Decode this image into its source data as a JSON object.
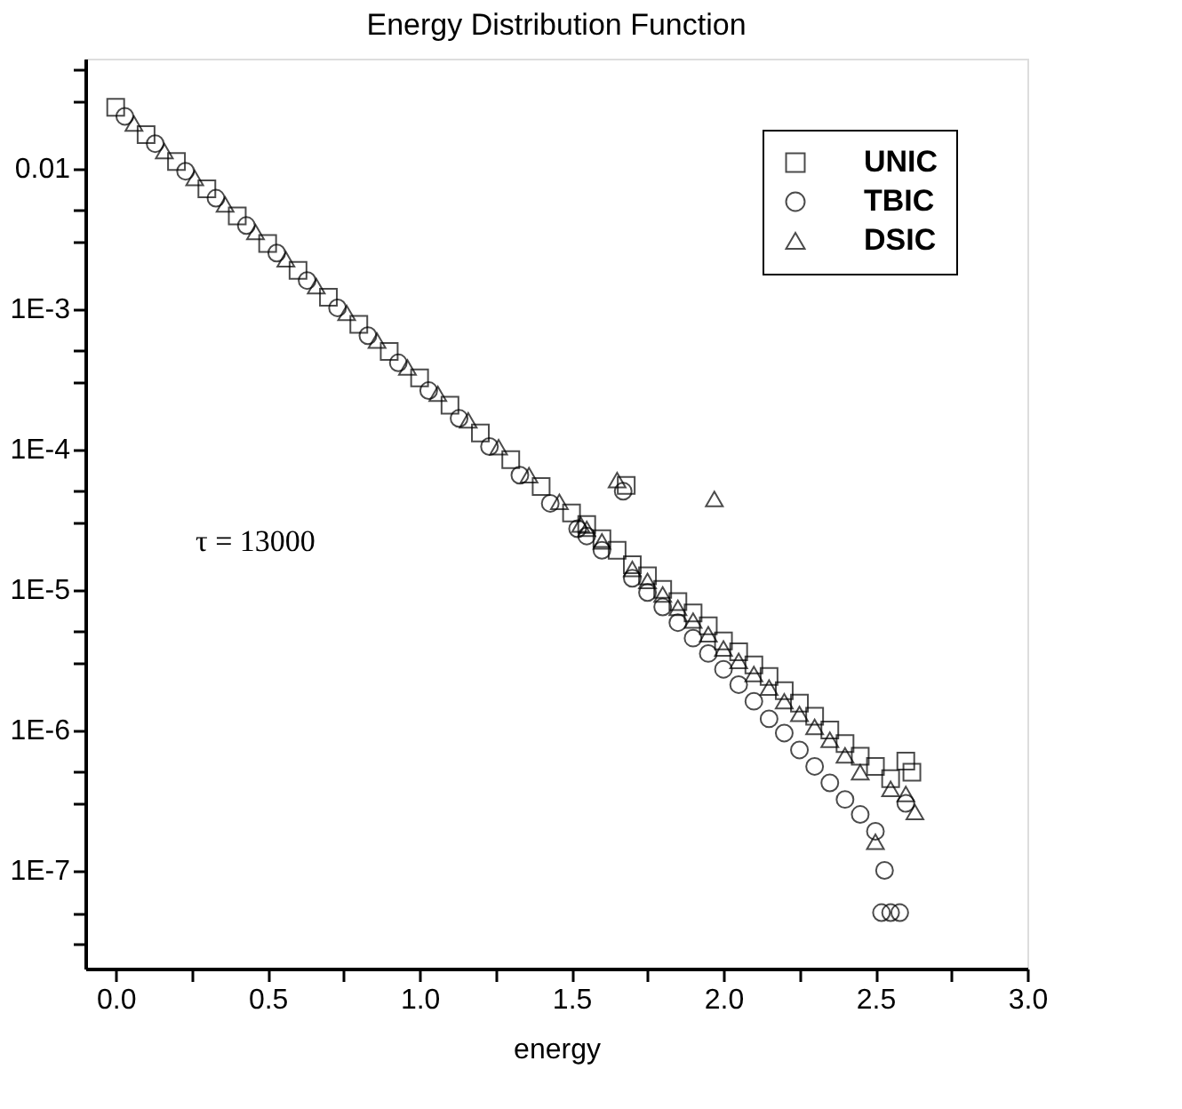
{
  "chart_data": {
    "type": "scatter",
    "title": "Energy Distribution Function",
    "xlabel": "energy",
    "annotations": [
      "τ = 13000"
    ],
    "xlim": [
      -0.1,
      3.0
    ],
    "xticks": [
      {
        "value": 0,
        "label": "0.0"
      },
      {
        "value": 0.25,
        "label": null
      },
      {
        "value": 0.5,
        "label": "0.5"
      },
      {
        "value": 0.75,
        "label": null
      },
      {
        "value": 1.0,
        "label": "1.0"
      },
      {
        "value": 1.25,
        "label": null
      },
      {
        "value": 1.5,
        "label": "1.5"
      },
      {
        "value": 1.75,
        "label": null
      },
      {
        "value": 2.0,
        "label": "2.0"
      },
      {
        "value": 2.25,
        "label": null
      },
      {
        "value": 2.5,
        "label": "2.5"
      },
      {
        "value": 2.75,
        "label": null
      },
      {
        "value": 3.0,
        "label": "3.0"
      }
    ],
    "ylim": [
      2e-08,
      0.06
    ],
    "log": "y",
    "yticks": [
      {
        "value": 3e-08,
        "label": null
      },
      {
        "value": 5e-08,
        "label": null
      },
      {
        "value": 1e-07,
        "label": "1E-7"
      },
      {
        "value": 3e-07,
        "label": null
      },
      {
        "value": 5e-07,
        "label": null
      },
      {
        "value": 1e-06,
        "label": "1E-6"
      },
      {
        "value": 3e-06,
        "label": null
      },
      {
        "value": 5e-06,
        "label": null
      },
      {
        "value": 1e-05,
        "label": "1E-5"
      },
      {
        "value": 3e-05,
        "label": null
      },
      {
        "value": 5e-05,
        "label": null
      },
      {
        "value": 0.0001,
        "label": "1E-4"
      },
      {
        "value": 0.0003,
        "label": null
      },
      {
        "value": 0.0005,
        "label": null
      },
      {
        "value": 0.001,
        "label": "1E-3"
      },
      {
        "value": 0.003,
        "label": null
      },
      {
        "value": 0.005,
        "label": null
      },
      {
        "value": 0.01,
        "label": "0.01"
      },
      {
        "value": 0.03,
        "label": null
      },
      {
        "value": 0.05,
        "label": null
      }
    ],
    "grid": false,
    "legend": "top right",
    "series": [
      {
        "name": "UNIC",
        "color": "#000000",
        "marker": "square",
        "x": [
          0,
          0.1,
          0.2,
          0.3,
          0.4,
          0.5,
          0.6,
          0.7,
          0.8,
          0.9,
          1.0,
          1.1,
          1.2,
          1.3,
          1.4,
          1.5,
          1.55,
          1.6,
          1.65,
          1.68,
          1.7,
          1.75,
          1.8,
          1.85,
          1.9,
          1.95,
          2.0,
          2.05,
          2.1,
          2.15,
          2.2,
          2.25,
          2.3,
          2.35,
          2.4,
          2.45,
          2.5,
          2.55,
          2.6,
          2.62
        ],
        "values": [
          0.027,
          0.0173,
          0.0111,
          0.0071,
          0.00455,
          0.0029,
          0.00187,
          0.0012,
          0.00077,
          0.000495,
          0.00032,
          0.000205,
          0.00013,
          8.4e-05,
          5.4e-05,
          3.5e-05,
          2.9e-05,
          2.3e-05,
          1.9e-05,
          5.5e-05,
          1.5e-05,
          1.25e-05,
          1e-05,
          8.2e-06,
          6.8e-06,
          5.5e-06,
          4.3e-06,
          3.6e-06,
          2.9e-06,
          2.4e-06,
          1.9e-06,
          1.55e-06,
          1.25e-06,
          1e-06,
          8e-07,
          6.5e-07,
          5.5e-07,
          4.5e-07,
          6e-07,
          5e-07
        ]
      },
      {
        "name": "TBIC",
        "color": "#000000",
        "marker": "circle",
        "x": [
          0.03,
          0.13,
          0.23,
          0.33,
          0.43,
          0.53,
          0.63,
          0.73,
          0.83,
          0.93,
          1.03,
          1.13,
          1.23,
          1.33,
          1.43,
          1.52,
          1.55,
          1.6,
          1.67,
          1.7,
          1.75,
          1.8,
          1.85,
          1.9,
          1.95,
          2.0,
          2.05,
          2.1,
          2.15,
          2.2,
          2.25,
          2.3,
          2.35,
          2.4,
          2.45,
          2.5,
          2.52,
          2.53,
          2.55,
          2.58,
          2.6
        ],
        "values": [
          0.0233,
          0.0149,
          0.00948,
          0.00609,
          0.00389,
          0.00248,
          0.00158,
          0.00101,
          0.00064,
          0.00041,
          0.00026,
          0.000165,
          0.000104,
          6.5e-05,
          4.1e-05,
          2.7e-05,
          2.4e-05,
          1.9e-05,
          5e-05,
          1.2e-05,
          9.5e-06,
          7.5e-06,
          5.8e-06,
          4.5e-06,
          3.5e-06,
          2.7e-06,
          2.1e-06,
          1.6e-06,
          1.2e-06,
          9.5e-07,
          7.2e-07,
          5.5e-07,
          4.2e-07,
          3.2e-07,
          2.5e-07,
          1.9e-07,
          5e-08,
          1e-07,
          5e-08,
          5e-08,
          3e-07
        ]
      },
      {
        "name": "DSIC",
        "color": "#000000",
        "marker": "triangle",
        "x": [
          0.06,
          0.16,
          0.26,
          0.36,
          0.46,
          0.56,
          0.66,
          0.76,
          0.86,
          0.96,
          1.06,
          1.16,
          1.26,
          1.36,
          1.46,
          1.53,
          1.55,
          1.6,
          1.65,
          1.7,
          1.75,
          1.8,
          1.85,
          1.9,
          1.95,
          1.97,
          2.0,
          2.05,
          2.1,
          2.15,
          2.2,
          2.25,
          2.3,
          2.35,
          2.4,
          2.45,
          2.5,
          2.55,
          2.6,
          2.63
        ],
        "values": [
          0.0207,
          0.0132,
          0.0085,
          0.0055,
          0.0035,
          0.00224,
          0.00144,
          0.00093,
          0.00059,
          0.00038,
          0.000247,
          0.00016,
          0.000103,
          6.5e-05,
          4.2e-05,
          2.9e-05,
          2.7e-05,
          2.2e-05,
          6e-05,
          1.4e-05,
          1.15e-05,
          9.2e-06,
          7.4e-06,
          6e-06,
          4.8e-06,
          4.4e-05,
          3.8e-06,
          3.1e-06,
          2.5e-06,
          2e-06,
          1.6e-06,
          1.3e-06,
          1.05e-06,
          8.5e-07,
          6.6e-07,
          5e-07,
          1.6e-07,
          3.8e-07,
          3.5e-07,
          2.6e-07
        ]
      }
    ]
  }
}
